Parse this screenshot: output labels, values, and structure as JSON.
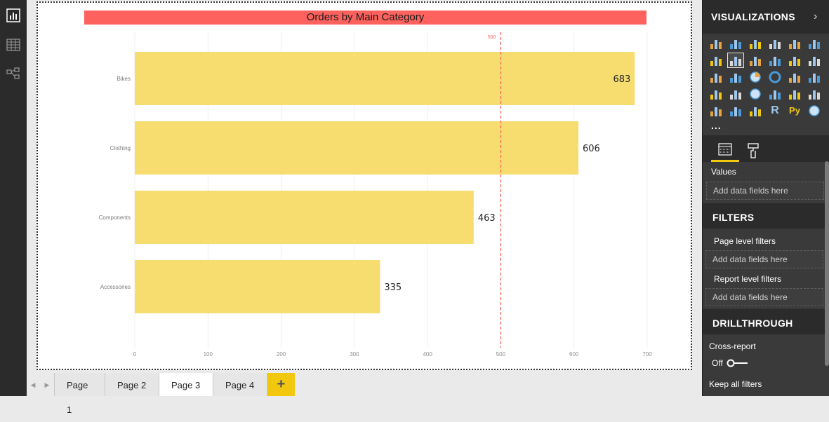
{
  "nav": {
    "items": [
      {
        "icon": "report-view-icon"
      },
      {
        "icon": "data-view-icon"
      },
      {
        "icon": "model-view-icon"
      }
    ]
  },
  "chart": {
    "title": "Orders by Main Category",
    "reference_label": "500"
  },
  "chart_data": {
    "type": "bar",
    "orientation": "horizontal",
    "title": "Orders by Main Category",
    "categories": [
      "Bikes",
      "Clothing",
      "Components",
      "Accessories"
    ],
    "values": [
      683,
      606,
      463,
      335
    ],
    "xlim": [
      0,
      700
    ],
    "x_ticks": [
      0,
      100,
      200,
      300,
      400,
      500,
      600,
      700
    ],
    "reference_line": {
      "value": 500,
      "label": "500",
      "color": "#fd625e",
      "style": "dashed"
    },
    "bar_color": "#f7dc70",
    "grid": "vertical",
    "xlabel": "",
    "ylabel": ""
  },
  "tabs": {
    "items": [
      "Page 1",
      "Page 2",
      "Page 3",
      "Page 4"
    ],
    "active": "Page 3",
    "add_label": "+"
  },
  "pane": {
    "title": "VISUALIZATIONS",
    "more": "...",
    "values_label": "Values",
    "values_placeholder": "Add data fields here",
    "filters_title": "FILTERS",
    "page_filters_label": "Page level filters",
    "page_filters_placeholder": "Add data fields here",
    "report_filters_label": "Report level filters",
    "report_filters_placeholder": "Add data fields here",
    "drillthrough_title": "DRILLTHROUGH",
    "cross_report_label": "Cross-report",
    "cross_report_toggle": "Off",
    "keep_filters_label": "Keep all filters"
  },
  "colors": {
    "accent": "#f2c80f",
    "title_bg": "#fd625e",
    "bar": "#f7dc70",
    "pane_bg": "#3a3a3a",
    "rail_bg": "#2b2b2b"
  }
}
